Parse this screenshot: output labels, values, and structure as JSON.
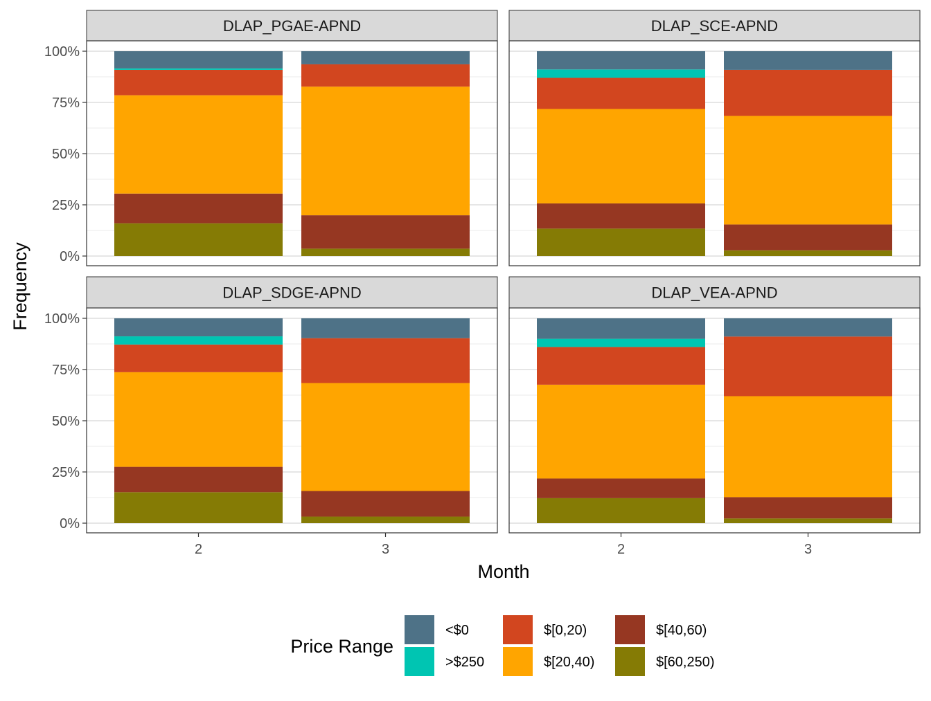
{
  "chart_data": {
    "type": "bar",
    "stacked": "percent",
    "facet": "2x2 grid",
    "xlabel": "Month",
    "ylabel": "Frequency",
    "ylim": [
      0,
      100
    ],
    "y_ticks": [
      "0%",
      "25%",
      "50%",
      "75%",
      "100%"
    ],
    "categories": [
      "2",
      "3"
    ],
    "legend": {
      "title": "Price Range",
      "position": "bottom",
      "entries": [
        {
          "label": "<$0",
          "color": "#4E7287"
        },
        {
          "label": ">$250",
          "color": "#00C5B2"
        },
        {
          "label": "$[0,20)",
          "color": "#D2461F"
        },
        {
          "label": "$[20,40)",
          "color": "#FFA500"
        },
        {
          "label": "$[40,60)",
          "color": "#963722"
        },
        {
          "label": "$[60,250)",
          "color": "#857B05"
        }
      ]
    },
    "stack_order_bottom_to_top": [
      "$[60,250)",
      "$[40,60)",
      "$[20,40)",
      "$[0,20)",
      ">$250",
      "<$0"
    ],
    "panels": [
      {
        "title": "DLAP_PGAE-APND",
        "bars": [
          {
            "month": "2",
            "values": {
              "$[60,250)": 16.0,
              "$[40,60)": 14.5,
              "$[20,40)": 48.0,
              "$[0,20)": 12.4,
              ">$250": 0.7,
              "<$0": 8.4
            }
          },
          {
            "month": "3",
            "values": {
              "$[60,250)": 3.6,
              "$[40,60)": 16.3,
              "$[20,40)": 62.8,
              "$[0,20)": 10.9,
              ">$250": 0.0,
              "<$0": 6.4
            }
          }
        ]
      },
      {
        "title": "DLAP_SCE-APND",
        "bars": [
          {
            "month": "2",
            "values": {
              "$[60,250)": 13.4,
              "$[40,60)": 12.3,
              "$[20,40)": 46.1,
              "$[0,20)": 15.2,
              ">$250": 4.1,
              "<$0": 8.9
            }
          },
          {
            "month": "3",
            "values": {
              "$[60,250)": 2.8,
              "$[40,60)": 12.6,
              "$[20,40)": 53.0,
              "$[0,20)": 22.5,
              ">$250": 0.0,
              "<$0": 9.1
            }
          }
        ]
      },
      {
        "title": "DLAP_SDGE-APND",
        "bars": [
          {
            "month": "2",
            "values": {
              "$[60,250)": 15.1,
              "$[40,60)": 12.4,
              "$[20,40)": 46.2,
              "$[0,20)": 13.5,
              ">$250": 4.0,
              "<$0": 8.8
            }
          },
          {
            "month": "3",
            "values": {
              "$[60,250)": 3.2,
              "$[40,60)": 12.5,
              "$[20,40)": 52.7,
              "$[0,20)": 21.9,
              ">$250": 0.0,
              "<$0": 9.7
            }
          }
        ]
      },
      {
        "title": "DLAP_VEA-APND",
        "bars": [
          {
            "month": "2",
            "values": {
              "$[60,250)": 12.2,
              "$[40,60)": 9.6,
              "$[20,40)": 45.8,
              "$[0,20)": 18.4,
              ">$250": 4.0,
              "<$0": 10.0
            }
          },
          {
            "month": "3",
            "values": {
              "$[60,250)": 2.3,
              "$[40,60)": 10.4,
              "$[20,40)": 49.3,
              "$[0,20)": 29.1,
              ">$250": 0.0,
              "<$0": 8.9
            }
          }
        ]
      }
    ]
  }
}
